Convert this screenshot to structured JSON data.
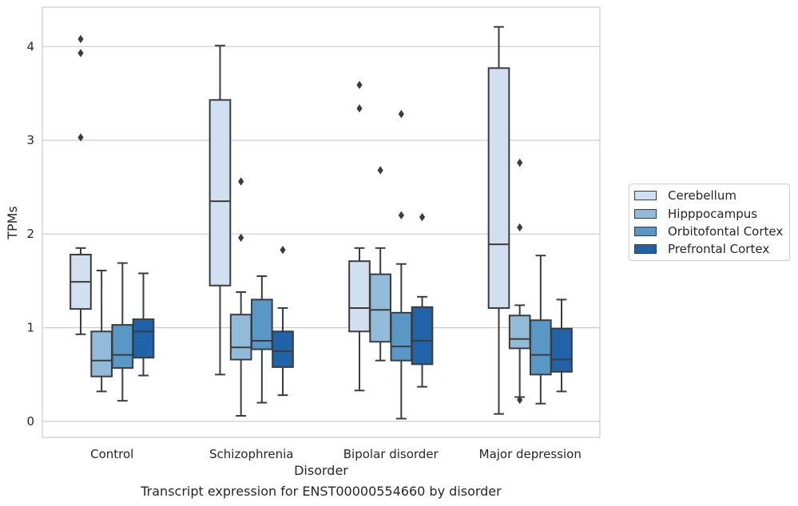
{
  "chart_data": {
    "type": "box",
    "title": "",
    "xlabel": "Disorder",
    "ylabel": "TPMs",
    "ylim": [
      -0.17,
      4.42
    ],
    "yticks": [
      0,
      1,
      2,
      3,
      4
    ],
    "grid": "horizontal",
    "legend_position": "right",
    "categories": [
      "Control",
      "Schizophrenia",
      "Bipolar disorder",
      "Major depression"
    ],
    "series": [
      {
        "name": "Cerebellum",
        "color": "#d0e0f0",
        "boxes": [
          {
            "whislo": 0.93,
            "q1": 1.2,
            "med": 1.49,
            "q3": 1.78,
            "whishi": 1.85,
            "fliers": [
              3.03,
              3.93,
              4.08
            ]
          },
          {
            "whislo": 0.5,
            "q1": 1.45,
            "med": 2.35,
            "q3": 3.43,
            "whishi": 4.01,
            "fliers": []
          },
          {
            "whislo": 0.33,
            "q1": 0.96,
            "med": 1.21,
            "q3": 1.71,
            "whishi": 1.85,
            "fliers": [
              3.34,
              3.59
            ]
          },
          {
            "whislo": 0.08,
            "q1": 1.21,
            "med": 1.89,
            "q3": 3.77,
            "whishi": 4.21,
            "fliers": []
          }
        ]
      },
      {
        "name": "Hipppocampus",
        "color": "#92bbd9",
        "boxes": [
          {
            "whislo": 0.32,
            "q1": 0.48,
            "med": 0.65,
            "q3": 0.96,
            "whishi": 1.61,
            "fliers": []
          },
          {
            "whislo": 0.06,
            "q1": 0.66,
            "med": 0.79,
            "q3": 1.14,
            "whishi": 1.38,
            "fliers": [
              1.96,
              2.56
            ]
          },
          {
            "whislo": 0.65,
            "q1": 0.85,
            "med": 1.19,
            "q3": 1.57,
            "whishi": 1.85,
            "fliers": [
              2.68
            ]
          },
          {
            "whislo": 0.26,
            "q1": 0.78,
            "med": 0.88,
            "q3": 1.13,
            "whishi": 1.24,
            "fliers": [
              0.23,
              2.07,
              2.76
            ]
          }
        ]
      },
      {
        "name": "Orbitofontal Cortex",
        "color": "#5897c6",
        "boxes": [
          {
            "whislo": 0.22,
            "q1": 0.57,
            "med": 0.71,
            "q3": 1.03,
            "whishi": 1.69,
            "fliers": []
          },
          {
            "whislo": 0.2,
            "q1": 0.77,
            "med": 0.86,
            "q3": 1.3,
            "whishi": 1.55,
            "fliers": []
          },
          {
            "whislo": 0.03,
            "q1": 0.65,
            "med": 0.8,
            "q3": 1.16,
            "whishi": 1.68,
            "fliers": [
              2.2,
              3.28
            ]
          },
          {
            "whislo": 0.19,
            "q1": 0.5,
            "med": 0.71,
            "q3": 1.08,
            "whishi": 1.77,
            "fliers": []
          }
        ]
      },
      {
        "name": "Prefrontal Cortex",
        "color": "#2163a8",
        "boxes": [
          {
            "whislo": 0.49,
            "q1": 0.68,
            "med": 0.96,
            "q3": 1.09,
            "whishi": 1.58,
            "fliers": []
          },
          {
            "whislo": 0.28,
            "q1": 0.58,
            "med": 0.75,
            "q3": 0.96,
            "whishi": 1.21,
            "fliers": [
              1.83
            ]
          },
          {
            "whislo": 0.37,
            "q1": 0.61,
            "med": 0.86,
            "q3": 1.22,
            "whishi": 1.33,
            "fliers": [
              2.18
            ]
          },
          {
            "whislo": 0.32,
            "q1": 0.53,
            "med": 0.66,
            "q3": 0.99,
            "whishi": 1.3,
            "fliers": []
          }
        ]
      }
    ]
  },
  "caption": "Transcript expression for ENST00000554660 by disorder"
}
